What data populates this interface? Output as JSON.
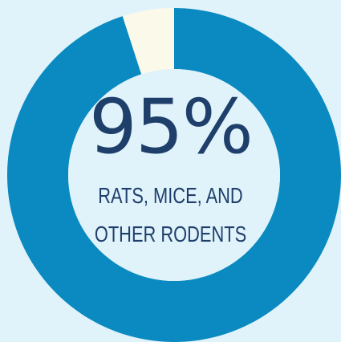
{
  "colors": {
    "background": "#e0f3fb",
    "main_slice": "#0a8ac0",
    "other_slice": "#fbf9e9",
    "inner_circle": "#e0f3fb",
    "text": "#1f3f6b"
  },
  "center": {
    "value_text": "95%",
    "label_line_1": "RATS, MICE, AND",
    "label_line_2": "OTHER RODENTS"
  },
  "chart_data": {
    "type": "pie",
    "variant": "donut",
    "slices": [
      {
        "value": 95,
        "color": "#0a8ac0"
      },
      {
        "value": 5,
        "color": "#fbf9e9"
      }
    ]
  }
}
